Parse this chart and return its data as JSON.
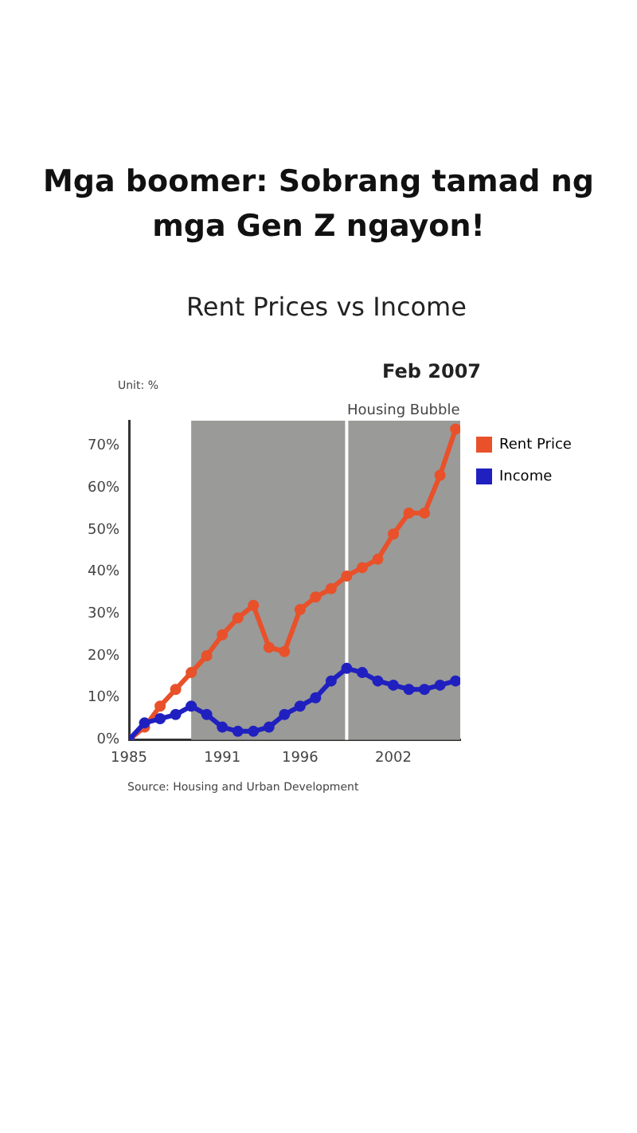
{
  "chart_data": {
    "type": "line",
    "title": "Rent Prices vs Income",
    "annotations": [
      "Mga boomer: Sobrang tamad ng mga Gen Z ngayon!",
      "Feb 2007",
      "Unit: %",
      "Source: Housing and Urban Development"
    ],
    "x": [
      1985,
      1986,
      1987,
      1988,
      1989,
      1990,
      1991,
      1992,
      1993,
      1994,
      1995,
      1996,
      1997,
      1998,
      1999,
      2000,
      2001,
      2002,
      2003,
      2004,
      2005,
      2006
    ],
    "series": [
      {
        "name": "Rent Price",
        "color": "#e8512a",
        "values": [
          0,
          3,
          8,
          12,
          16,
          20,
          25,
          29,
          32,
          22,
          21,
          31,
          34,
          36,
          39,
          41,
          43,
          49,
          54,
          54,
          63,
          74
        ]
      },
      {
        "name": "Income",
        "color": "#2020c0",
        "values": [
          0,
          4,
          5,
          6,
          8,
          6,
          3,
          2,
          2,
          3,
          6,
          8,
          10,
          14,
          17,
          16,
          14,
          13,
          12,
          12,
          13,
          14
        ]
      }
    ],
    "xlim": [
      1985,
      2006.3
    ],
    "xticks": [
      1985,
      1991,
      1996,
      2002
    ],
    "ylim": [
      0,
      76
    ],
    "yticks": [
      {
        "value": 0,
        "label": "0%"
      },
      {
        "value": 10,
        "label": "10%"
      },
      {
        "value": 20,
        "label": "20%"
      },
      {
        "value": 30,
        "label": "30%"
      },
      {
        "value": 40,
        "label": "40%"
      },
      {
        "value": 50,
        "label": "50%"
      },
      {
        "value": 60,
        "label": "60%"
      },
      {
        "value": 70,
        "label": "70%"
      }
    ],
    "bands": [
      {
        "axis": "x",
        "from": 1989,
        "to": 1999,
        "color": "#9a9a98"
      },
      {
        "axis": "x",
        "from": 1999,
        "to": 2006.3,
        "label": "Housing Bubble",
        "color": "#9a9a98"
      }
    ],
    "ref_lines": [
      {
        "axis": "x",
        "value": 1999,
        "color": "#ffffff"
      }
    ],
    "grid": false,
    "legend": "top right",
    "marker": "circle",
    "line_style": "solid"
  }
}
